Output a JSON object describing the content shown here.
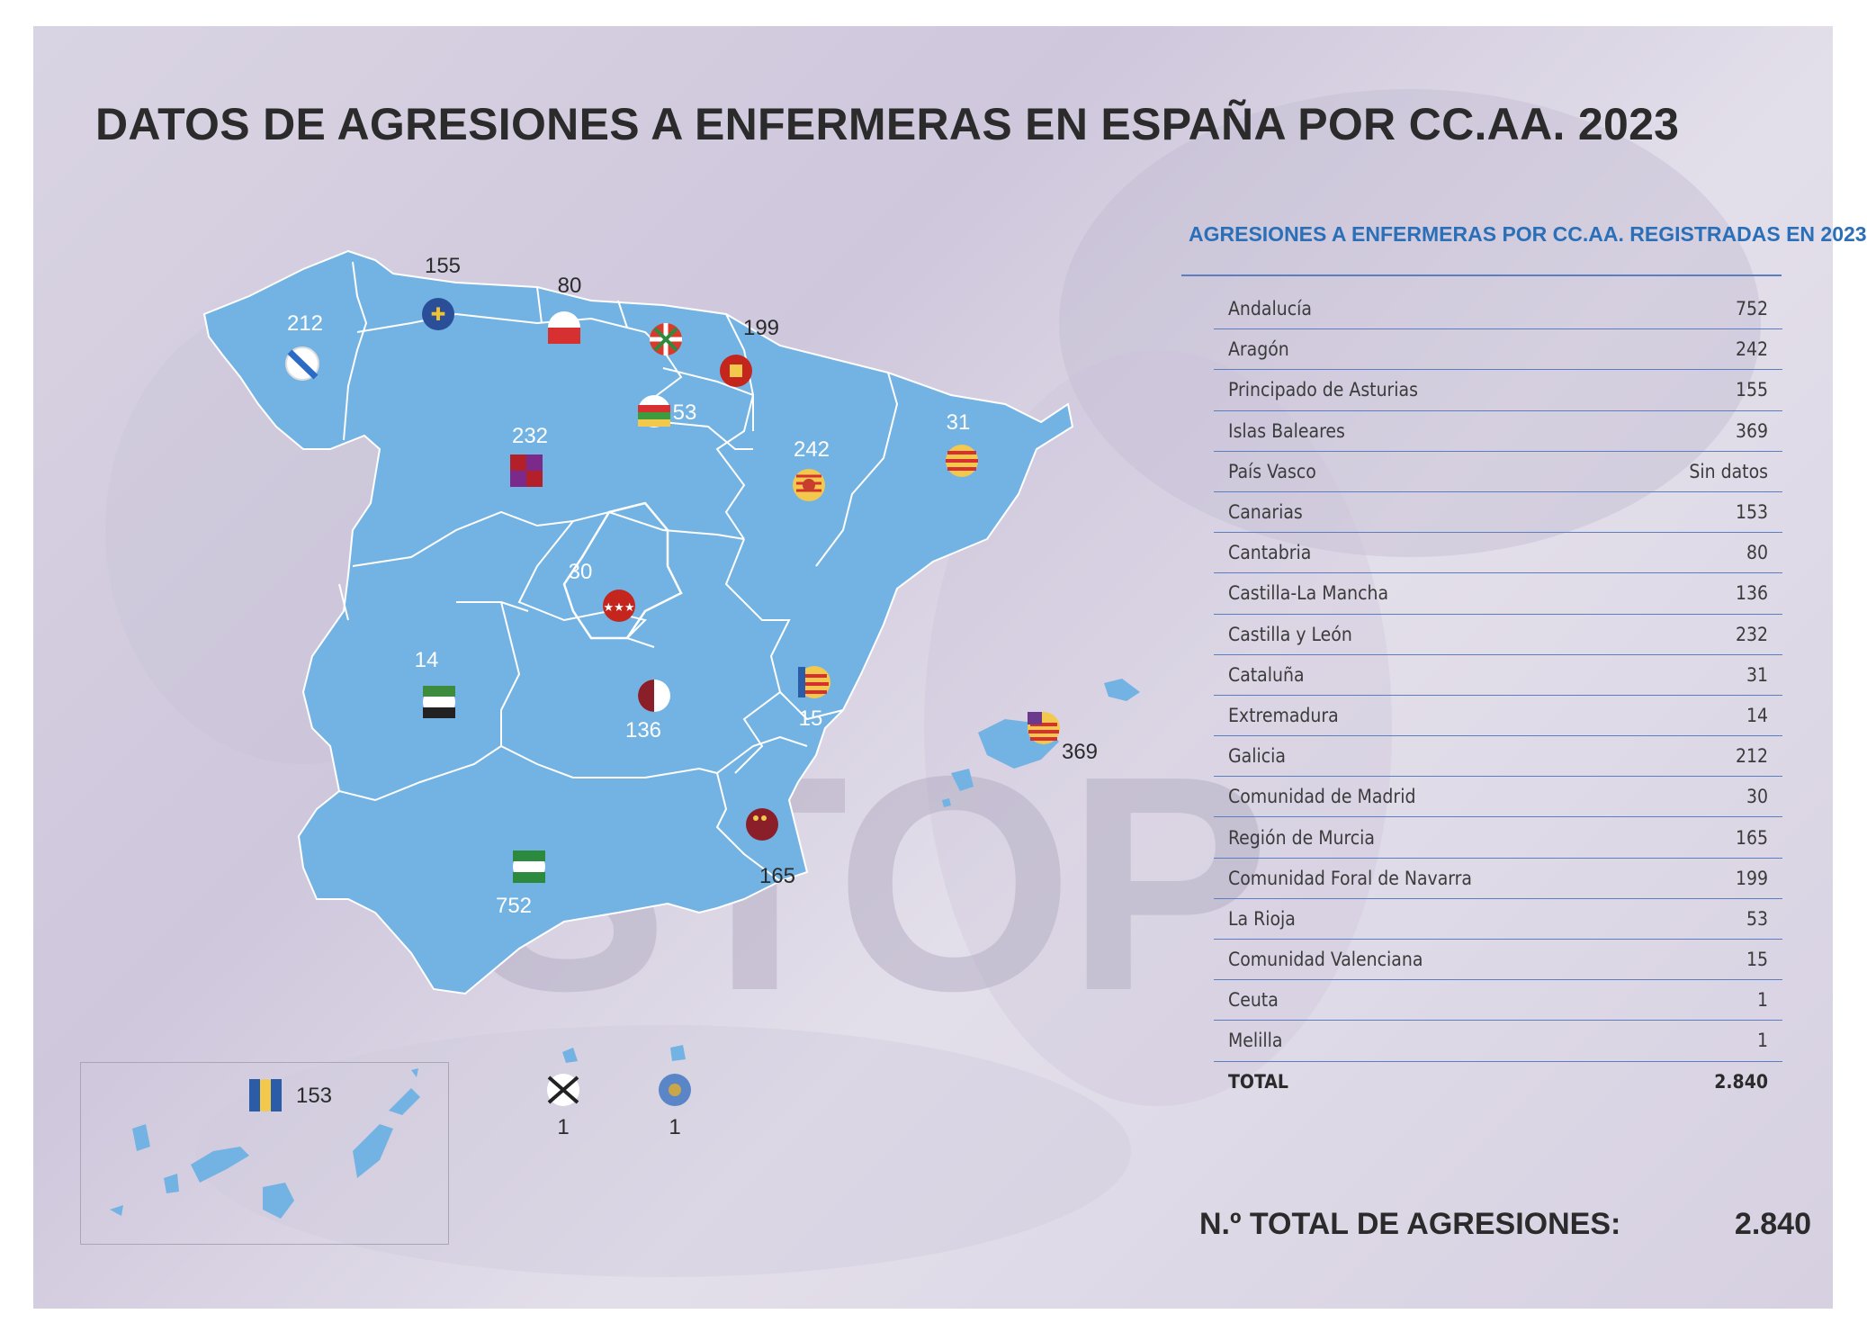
{
  "title": "DATOS DE AGRESIONES A ENFERMERAS EN ESPAÑA POR CC.AA. 2023",
  "table": {
    "title": "AGRESIONES A ENFERMERAS POR CC.AA. REGISTRADAS EN 2023",
    "rows": [
      {
        "name": "Andalucía",
        "value": "752"
      },
      {
        "name": "Aragón",
        "value": "242"
      },
      {
        "name": "Principado de Asturias",
        "value": "155"
      },
      {
        "name": "Islas Baleares",
        "value": "369"
      },
      {
        "name": "País Vasco",
        "value": "Sin datos"
      },
      {
        "name": "Canarias",
        "value": "153"
      },
      {
        "name": "Cantabria",
        "value": "80"
      },
      {
        "name": "Castilla-La Mancha",
        "value": "136"
      },
      {
        "name": "Castilla y León",
        "value": "232"
      },
      {
        "name": "Cataluña",
        "value": "31"
      },
      {
        "name": "Extremadura",
        "value": "14"
      },
      {
        "name": "Galicia",
        "value": "212"
      },
      {
        "name": "Comunidad de Madrid",
        "value": "30"
      },
      {
        "name": "Región de Murcia",
        "value": "165"
      },
      {
        "name": "Comunidad Foral de Navarra",
        "value": "199"
      },
      {
        "name": "La Rioja",
        "value": "53"
      },
      {
        "name": "Comunidad Valenciana",
        "value": "15"
      },
      {
        "name": "Ceuta",
        "value": "1"
      },
      {
        "name": "Melilla",
        "value": "1"
      }
    ],
    "total": {
      "name": "TOTAL",
      "value": "2.840"
    }
  },
  "grand_total": {
    "label": "N.º TOTAL DE AGRESIONES:",
    "value": "2.840"
  },
  "background_text": "STOP",
  "map": {
    "region_color": "#73b3e3",
    "border_color": "#ffffff",
    "labels": {
      "galicia": "212",
      "asturias": "155",
      "cantabria": "80",
      "navarra": "199",
      "la_rioja": "53",
      "castilla_leon": "232",
      "aragon": "242",
      "cataluna": "31",
      "madrid": "30",
      "extremadura": "14",
      "castilla_la_mancha": "136",
      "valencia": "15",
      "baleares": "369",
      "murcia": "165",
      "andalucia": "752",
      "canarias": "153",
      "ceuta": "1",
      "melilla": "1"
    }
  }
}
